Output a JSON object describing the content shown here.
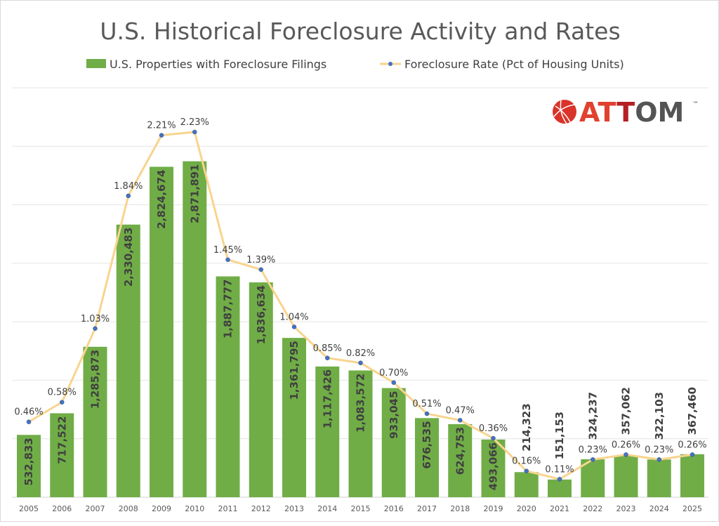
{
  "chart_data": {
    "type": "bar+line",
    "title": "U.S. Historical Foreclosure Activity and Rates",
    "legend_position": "top",
    "grid": true,
    "categories": [
      "2005",
      "2006",
      "2007",
      "2008",
      "2009",
      "2010",
      "2011",
      "2012",
      "2013",
      "2014",
      "2015",
      "2016",
      "2017",
      "2018",
      "2019",
      "2020",
      "2021",
      "2022",
      "2023",
      "2024",
      "2025"
    ],
    "series": [
      {
        "name": "U.S. Properties with Foreclosure Filings",
        "type": "bar",
        "axis": "primary",
        "color": "#70AD47",
        "values": [
          532833,
          717522,
          1285873,
          2330483,
          2824674,
          2871891,
          1887777,
          1836634,
          1361795,
          1117426,
          1083572,
          933045,
          676535,
          624753,
          493066,
          214323,
          151153,
          324237,
          357062,
          322103,
          367460
        ],
        "labels": [
          "532,833",
          "717,522",
          "1,285,873",
          "2,330,483",
          "2,824,674",
          "2,871,891",
          "1,887,777",
          "1,836,634",
          "1,361,795",
          "1,117,426",
          "1,083,572",
          "933,045",
          "676,535",
          "624,753",
          "493,066",
          "214,323",
          "151,153",
          "324,237",
          "357,062",
          "322,103",
          "367,460"
        ]
      },
      {
        "name": "Foreclosure Rate (Pct of Housing Units)",
        "type": "line",
        "axis": "secondary",
        "color": "#F8D48E",
        "marker_color": "#4472C4",
        "values": [
          0.46,
          0.58,
          1.03,
          1.84,
          2.21,
          2.23,
          1.45,
          1.39,
          1.04,
          0.85,
          0.82,
          0.7,
          0.51,
          0.47,
          0.36,
          0.16,
          0.11,
          0.23,
          0.26,
          0.23,
          0.26
        ],
        "labels": [
          "0.46%",
          "0.58%",
          "1.03%",
          "1.84%",
          "2.21%",
          "2.23%",
          "1.45%",
          "1.39%",
          "1.04%",
          "0.85%",
          "0.82%",
          "0.70%",
          "0.51%",
          "0.47%",
          "0.36%",
          "0.16%",
          "0.11%",
          "0.23%",
          "0.26%",
          "0.23%",
          "0.26%"
        ]
      }
    ],
    "ylim": [
      0,
      3500000
    ],
    "y2lim": [
      0,
      2.5
    ],
    "y_gridline_step": 500000,
    "axis_labels_shown": false
  },
  "logo": {
    "text": "ATTOM",
    "tm": "™"
  }
}
